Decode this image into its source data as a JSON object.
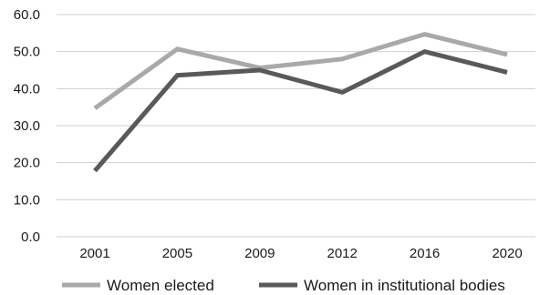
{
  "chart_data": {
    "type": "line",
    "title": "",
    "xlabel": "",
    "ylabel": "",
    "x": [
      "2001",
      "2005",
      "2009",
      "2012",
      "2016",
      "2020"
    ],
    "y_ticks": [
      "0.0",
      "10.0",
      "20.0",
      "30.0",
      "40.0",
      "50.0",
      "60.0"
    ],
    "ylim": [
      0,
      60
    ],
    "grid": "horizontal",
    "legend": "bottom",
    "series": [
      {
        "name": "Women elected",
        "values": [
          34.7,
          50.7,
          45.6,
          48.0,
          54.7,
          49.2
        ],
        "color": "#a9a9a9"
      },
      {
        "name": "Women in institutional bodies",
        "values": [
          17.8,
          43.6,
          45.0,
          39.0,
          50.0,
          44.4
        ],
        "color": "#595959"
      }
    ]
  }
}
